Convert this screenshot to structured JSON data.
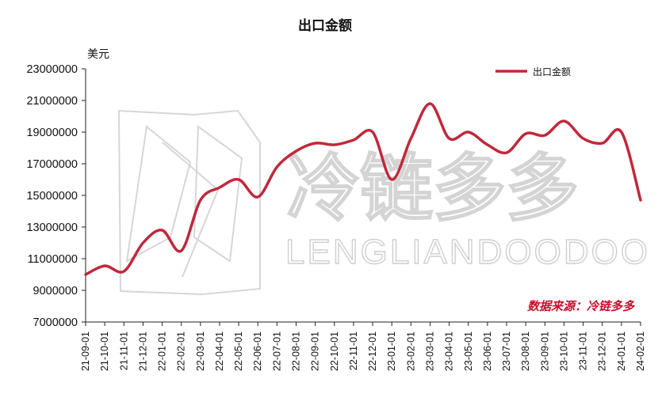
{
  "chart_data": {
    "type": "line",
    "title": "出口金额",
    "ylabel": "美元",
    "xlabel": "",
    "ylim": [
      7000000,
      23000000
    ],
    "y_ticks": [
      "23000000",
      "21000000",
      "19000000",
      "17000000",
      "15000000",
      "13000000",
      "11000000",
      "9000000",
      "7000000"
    ],
    "categories": [
      "21-09-01",
      "21-10-01",
      "21-11-01",
      "21-12-01",
      "22-01-01",
      "22-02-01",
      "22-03-01",
      "22-04-01",
      "22-05-01",
      "22-06-01",
      "22-07-01",
      "22-08-01",
      "22-09-01",
      "22-10-01",
      "22-11-01",
      "22-12-01",
      "23-01-01",
      "23-02-01",
      "23-03-01",
      "23-04-01",
      "23-05-01",
      "23-06-01",
      "23-07-01",
      "23-08-01",
      "23-09-01",
      "23-10-01",
      "23-11-01",
      "23-12-01",
      "24-01-01",
      "24-02-01"
    ],
    "series": [
      {
        "name": "出口金额",
        "color": "#c0283b",
        "values": [
          10000000,
          10550000,
          10200000,
          12000000,
          12800000,
          11500000,
          14700000,
          15500000,
          16000000,
          14900000,
          16800000,
          17800000,
          18300000,
          18200000,
          18500000,
          19000000,
          16000000,
          18600000,
          20800000,
          18600000,
          19000000,
          18200000,
          17700000,
          18900000,
          18800000,
          19700000,
          18600000,
          18300000,
          19000000,
          14700000
        ]
      }
    ],
    "legend_position": "top-right",
    "grid": false
  },
  "watermark": {
    "han": "冷链多多",
    "latin": "LENGLIANDOODOO"
  },
  "source_note": "数据来源：冷链多多"
}
